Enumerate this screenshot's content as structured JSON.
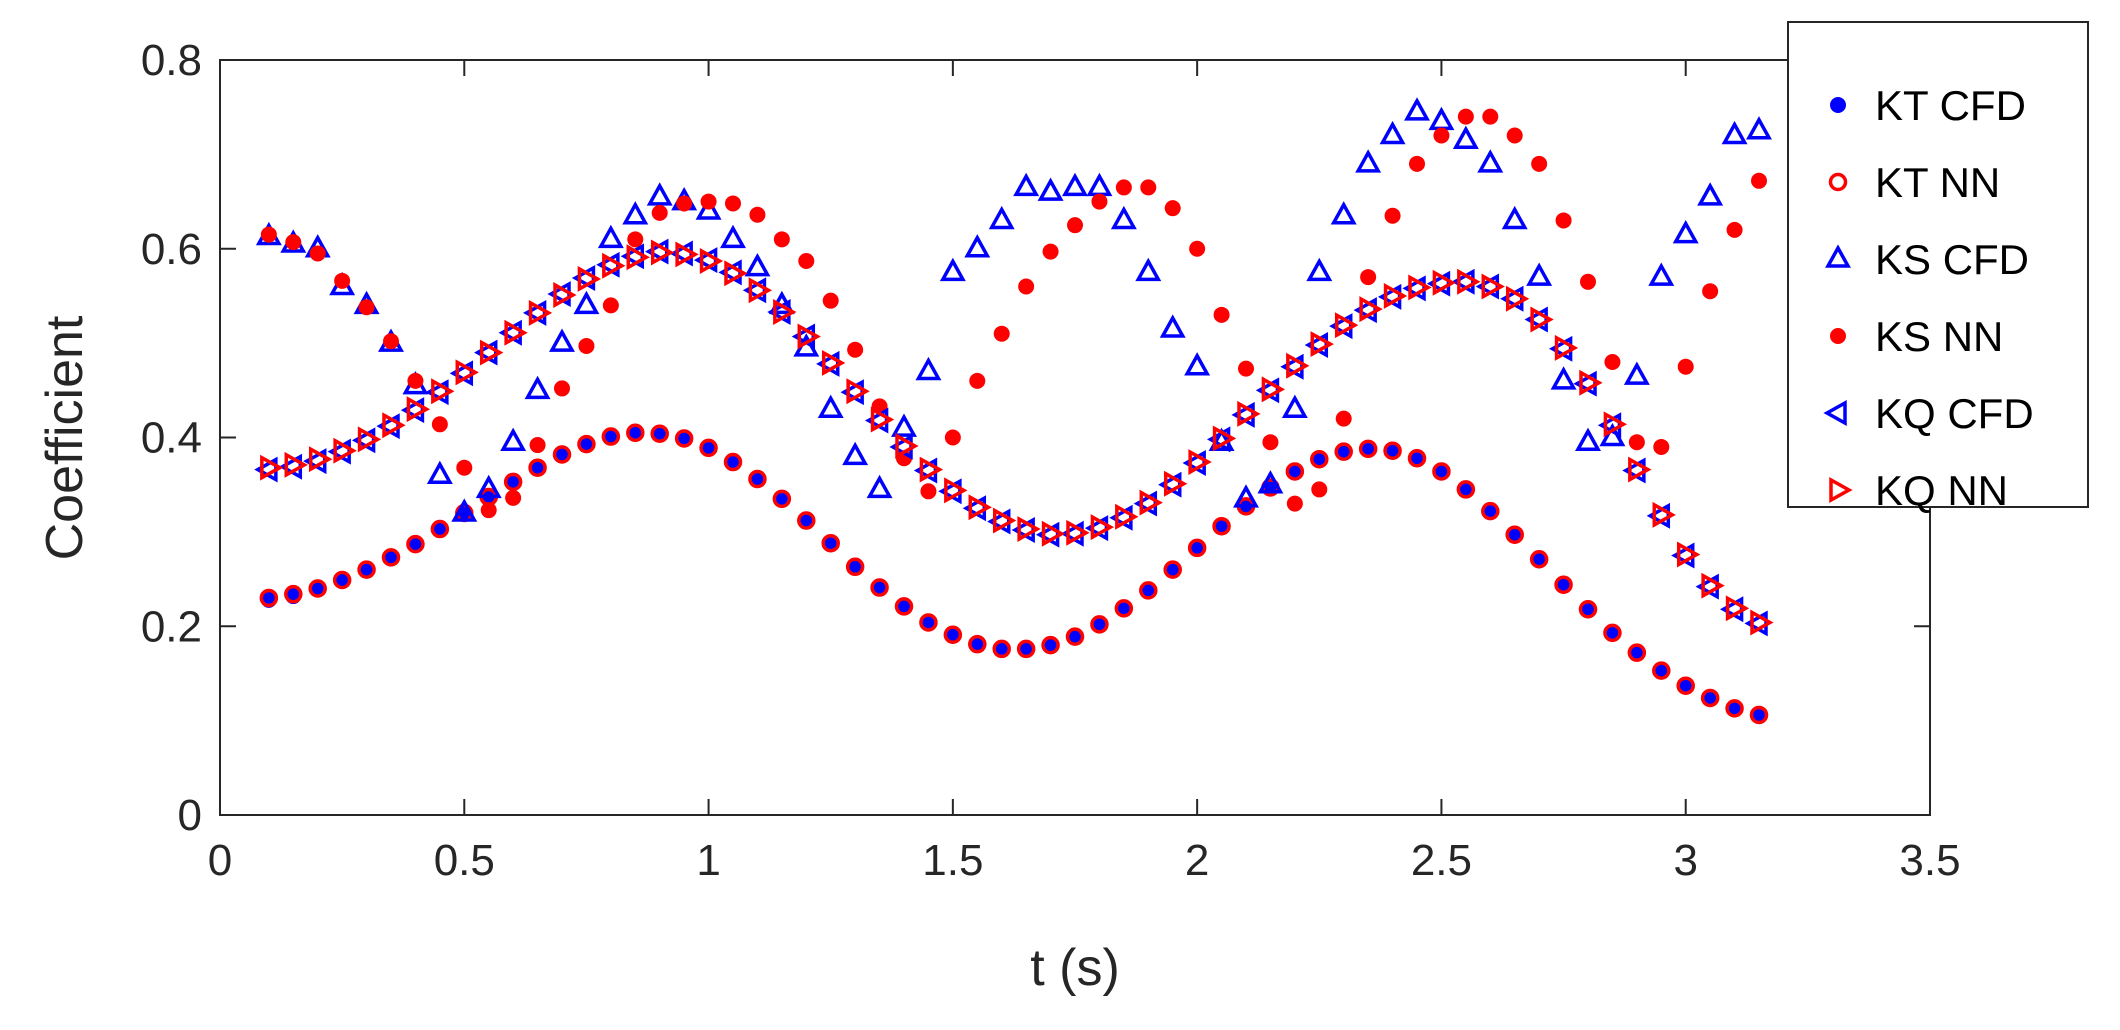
{
  "chart_data": {
    "type": "scatter",
    "title": "",
    "xlabel": "t (s)",
    "ylabel": "Coefficient",
    "xlim": [
      0,
      3.5
    ],
    "ylim": [
      0,
      0.8
    ],
    "xticks": [
      "0",
      "0.5",
      "1",
      "1.5",
      "2",
      "2.5",
      "3",
      "3.5"
    ],
    "yticks": [
      "0",
      "0.2",
      "0.4",
      "0.6",
      "0.8"
    ],
    "grid": false,
    "legend_position": "top-right",
    "x": [
      0.1,
      0.15,
      0.2,
      0.25,
      0.3,
      0.35,
      0.4,
      0.45,
      0.5,
      0.55,
      0.6,
      0.65,
      0.7,
      0.75,
      0.8,
      0.85,
      0.9,
      0.95,
      1.0,
      1.05,
      1.1,
      1.15,
      1.2,
      1.25,
      1.3,
      1.35,
      1.4,
      1.45,
      1.5,
      1.55,
      1.6,
      1.65,
      1.7,
      1.75,
      1.8,
      1.85,
      1.9,
      1.95,
      2.0,
      2.05,
      2.1,
      2.15,
      2.2,
      2.25,
      2.3,
      2.35,
      2.4,
      2.45,
      2.5,
      2.55,
      2.6,
      2.65,
      2.7,
      2.75,
      2.8,
      2.85,
      2.9,
      2.95,
      3.0,
      3.05,
      3.1,
      3.15
    ],
    "series": [
      {
        "name": "KT CFD",
        "marker": "dot",
        "color": "#0000ff",
        "values": [
          0.228,
          0.232,
          0.239,
          0.248,
          0.259,
          0.272,
          0.286,
          0.302,
          0.319,
          0.336,
          0.352,
          0.368,
          0.381,
          0.393,
          0.401,
          0.405,
          0.405,
          0.399,
          0.389,
          0.374,
          0.356,
          0.335,
          0.311,
          0.287,
          0.263,
          0.24,
          0.22,
          0.203,
          0.19,
          0.18,
          0.175,
          0.175,
          0.179,
          0.188,
          0.201,
          0.218,
          0.237,
          0.259,
          0.282,
          0.305,
          0.327,
          0.347,
          0.364,
          0.377,
          0.385,
          0.388,
          0.386,
          0.378,
          0.364,
          0.345,
          0.322,
          0.297,
          0.27,
          0.243,
          0.217,
          0.193,
          0.171,
          0.153,
          0.137,
          0.124,
          0.113,
          0.105
        ]
      },
      {
        "name": "KT NN",
        "marker": "circle",
        "color": "#ff0000",
        "values": [
          0.23,
          0.234,
          0.24,
          0.249,
          0.26,
          0.273,
          0.287,
          0.303,
          0.32,
          0.337,
          0.353,
          0.368,
          0.382,
          0.393,
          0.401,
          0.405,
          0.404,
          0.399,
          0.389,
          0.374,
          0.356,
          0.335,
          0.312,
          0.288,
          0.263,
          0.241,
          0.221,
          0.204,
          0.191,
          0.181,
          0.176,
          0.176,
          0.18,
          0.189,
          0.202,
          0.219,
          0.238,
          0.26,
          0.283,
          0.306,
          0.327,
          0.347,
          0.364,
          0.377,
          0.385,
          0.388,
          0.386,
          0.378,
          0.364,
          0.345,
          0.322,
          0.297,
          0.271,
          0.244,
          0.218,
          0.193,
          0.172,
          0.153,
          0.137,
          0.124,
          0.113,
          0.106
        ]
      },
      {
        "name": "KS CFD",
        "marker": "triangle-up",
        "color": "#0000ff",
        "values": [
          0.613,
          0.605,
          0.6,
          0.56,
          0.54,
          0.5,
          0.455,
          0.36,
          0.32,
          0.345,
          0.395,
          0.45,
          0.5,
          0.54,
          0.61,
          0.635,
          0.655,
          0.65,
          0.64,
          0.61,
          0.58,
          0.54,
          0.495,
          0.43,
          0.38,
          0.345,
          0.41,
          0.47,
          0.575,
          0.6,
          0.63,
          0.665,
          0.66,
          0.665,
          0.665,
          0.63,
          0.575,
          0.515,
          0.475,
          0.395,
          0.335,
          0.35,
          0.43,
          0.575,
          0.635,
          0.69,
          0.72,
          0.745,
          0.735,
          0.715,
          0.69,
          0.63,
          0.57,
          0.46,
          0.395,
          0.4,
          0.465,
          0.57,
          0.615,
          0.655,
          0.72,
          0.725
        ]
      },
      {
        "name": "KS NN",
        "marker": "dot",
        "color": "#ff0000",
        "values": [
          0.615,
          0.607,
          0.595,
          0.566,
          0.538,
          0.502,
          0.46,
          0.414,
          0.368,
          0.323,
          0.336,
          0.392,
          0.452,
          0.497,
          0.54,
          0.61,
          0.638,
          0.648,
          0.65,
          0.648,
          0.636,
          0.61,
          0.587,
          0.545,
          0.493,
          0.433,
          0.378,
          0.343,
          0.4,
          0.46,
          0.51,
          0.56,
          0.597,
          0.625,
          0.65,
          0.665,
          0.665,
          0.643,
          0.6,
          0.53,
          0.473,
          0.395,
          0.33,
          0.345,
          0.42,
          0.57,
          0.635,
          0.69,
          0.72,
          0.74,
          0.74,
          0.72,
          0.69,
          0.63,
          0.565,
          0.48,
          0.395,
          0.39,
          0.475,
          0.555,
          0.62,
          0.672
        ]
      },
      {
        "name": "KQ CFD",
        "marker": "triangle-left",
        "color": "#0000ff",
        "values": [
          0.366,
          0.369,
          0.375,
          0.385,
          0.397,
          0.412,
          0.429,
          0.448,
          0.468,
          0.49,
          0.511,
          0.532,
          0.552,
          0.569,
          0.583,
          0.592,
          0.597,
          0.595,
          0.588,
          0.575,
          0.556,
          0.533,
          0.507,
          0.478,
          0.448,
          0.418,
          0.39,
          0.365,
          0.343,
          0.325,
          0.311,
          0.302,
          0.297,
          0.298,
          0.304,
          0.315,
          0.33,
          0.35,
          0.373,
          0.398,
          0.424,
          0.45,
          0.475,
          0.498,
          0.518,
          0.535,
          0.549,
          0.558,
          0.563,
          0.565,
          0.56,
          0.547,
          0.525,
          0.494,
          0.457,
          0.413,
          0.365,
          0.317,
          0.275,
          0.242,
          0.218,
          0.203
        ]
      },
      {
        "name": "KQ NN",
        "marker": "triangle-right",
        "color": "#ff0000",
        "values": [
          0.368,
          0.371,
          0.377,
          0.386,
          0.398,
          0.413,
          0.43,
          0.449,
          0.469,
          0.49,
          0.511,
          0.532,
          0.551,
          0.568,
          0.582,
          0.591,
          0.596,
          0.594,
          0.587,
          0.574,
          0.556,
          0.533,
          0.507,
          0.479,
          0.449,
          0.419,
          0.391,
          0.366,
          0.344,
          0.326,
          0.312,
          0.303,
          0.298,
          0.299,
          0.305,
          0.316,
          0.331,
          0.351,
          0.374,
          0.399,
          0.425,
          0.451,
          0.476,
          0.499,
          0.519,
          0.536,
          0.55,
          0.559,
          0.564,
          0.565,
          0.56,
          0.547,
          0.525,
          0.495,
          0.458,
          0.414,
          0.366,
          0.318,
          0.276,
          0.243,
          0.219,
          0.204
        ]
      }
    ]
  }
}
